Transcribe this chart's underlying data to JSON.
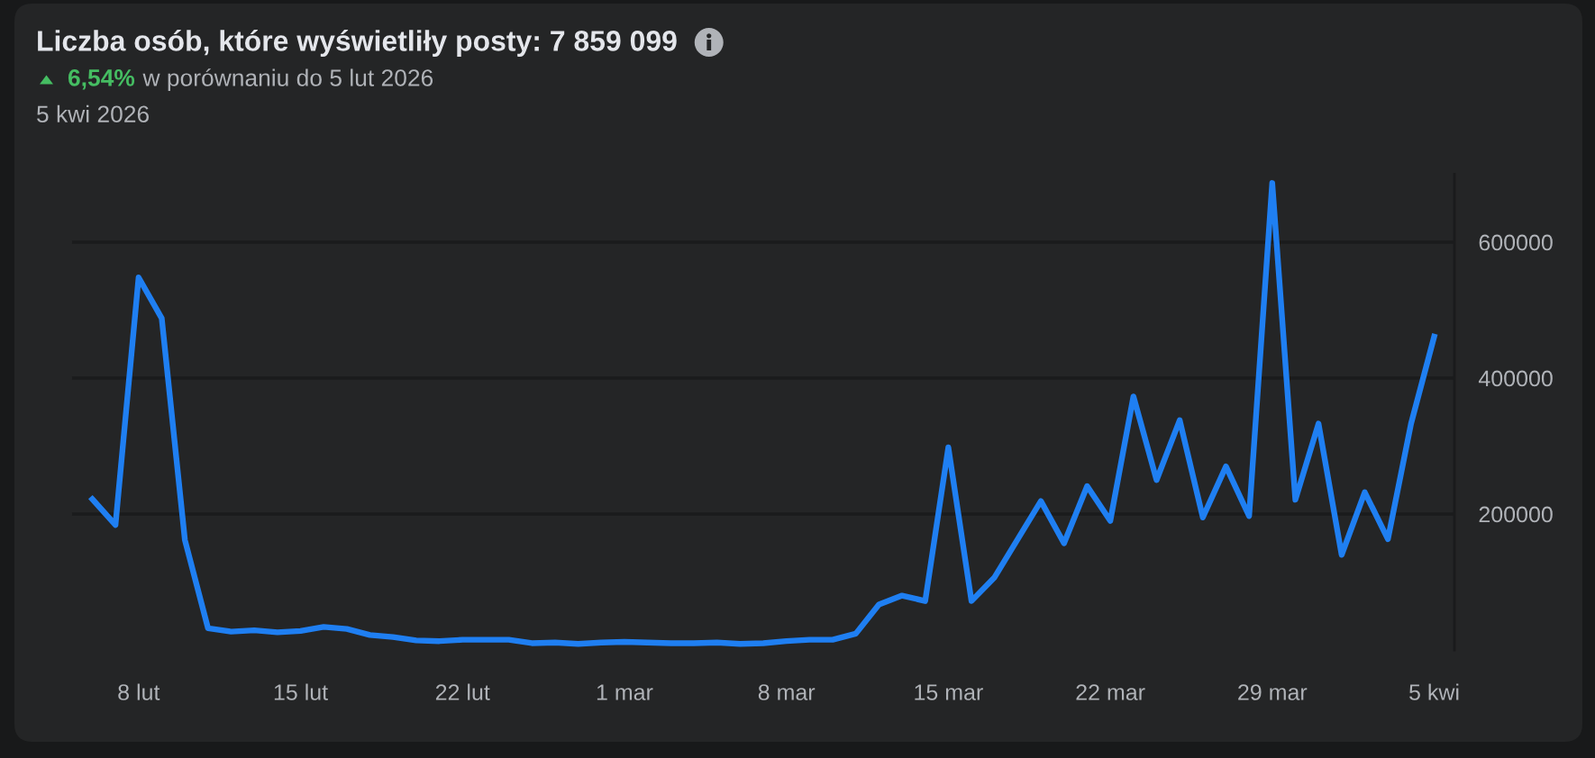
{
  "chart_data": {
    "type": "line",
    "title": "Liczba osób, które wyświetliły posty: 7 859 099",
    "subtitle": "6,54% w porównaniu do 5 lut 2026",
    "annotations": [
      "5 kwi 2026"
    ],
    "x": [
      "2026-02-06",
      "2026-02-07",
      "2026-02-08",
      "2026-02-09",
      "2026-02-10",
      "2026-02-11",
      "2026-02-12",
      "2026-02-13",
      "2026-02-14",
      "2026-02-15",
      "2026-02-16",
      "2026-02-17",
      "2026-02-18",
      "2026-02-19",
      "2026-02-20",
      "2026-02-21",
      "2026-02-22",
      "2026-02-23",
      "2026-02-24",
      "2026-02-25",
      "2026-02-26",
      "2026-02-27",
      "2026-02-28",
      "2026-03-01",
      "2026-03-02",
      "2026-03-03",
      "2026-03-04",
      "2026-03-05",
      "2026-03-06",
      "2026-03-07",
      "2026-03-08",
      "2026-03-09",
      "2026-03-10",
      "2026-03-11",
      "2026-03-12",
      "2026-03-13",
      "2026-03-14",
      "2026-03-15",
      "2026-03-16",
      "2026-03-17",
      "2026-03-18",
      "2026-03-19",
      "2026-03-20",
      "2026-03-21",
      "2026-03-22",
      "2026-03-23",
      "2026-03-24",
      "2026-03-25",
      "2026-03-26",
      "2026-03-27",
      "2026-03-28",
      "2026-03-29",
      "2026-03-30",
      "2026-03-31",
      "2026-04-01",
      "2026-04-02",
      "2026-04-03",
      "2026-04-04",
      "2026-04-05"
    ],
    "series": [
      {
        "color": "#1f7ff2",
        "values": [
          222000,
          184000,
          548000,
          488000,
          162000,
          32000,
          27000,
          29000,
          26000,
          28000,
          34000,
          31000,
          22000,
          19000,
          14000,
          13000,
          15000,
          15000,
          15000,
          10000,
          11000,
          9000,
          11000,
          12000,
          11000,
          10000,
          10000,
          11000,
          9000,
          10000,
          13000,
          15000,
          15000,
          24000,
          67000,
          80000,
          72000,
          298000,
          72000,
          107000,
          163000,
          219000,
          157000,
          241000,
          190000,
          373000,
          250000,
          338000,
          195000,
          270000,
          197000,
          687000,
          221000,
          333000,
          140000,
          232000,
          163000,
          333000,
          461000
        ]
      }
    ],
    "xlim": [
      "2026-02-05T03:00",
      "2026-04-05T21:00"
    ],
    "xticks": [
      {
        "value": "2026-02-08",
        "label": "8 lut"
      },
      {
        "value": "2026-02-15",
        "label": "15 lut"
      },
      {
        "value": "2026-02-22",
        "label": "22 lut"
      },
      {
        "value": "2026-03-01",
        "label": "1 mar"
      },
      {
        "value": "2026-03-08",
        "label": "8 mar"
      },
      {
        "value": "2026-03-15",
        "label": "15 mar"
      },
      {
        "value": "2026-03-22",
        "label": "22 mar"
      },
      {
        "value": "2026-03-29",
        "label": "29 mar"
      },
      {
        "value": "2026-04-05",
        "label": "5 kwi"
      }
    ],
    "ylim": [
      0,
      700000
    ],
    "yticks": [
      200000,
      400000,
      600000
    ],
    "grid": "y",
    "line_style": "solid"
  }
}
